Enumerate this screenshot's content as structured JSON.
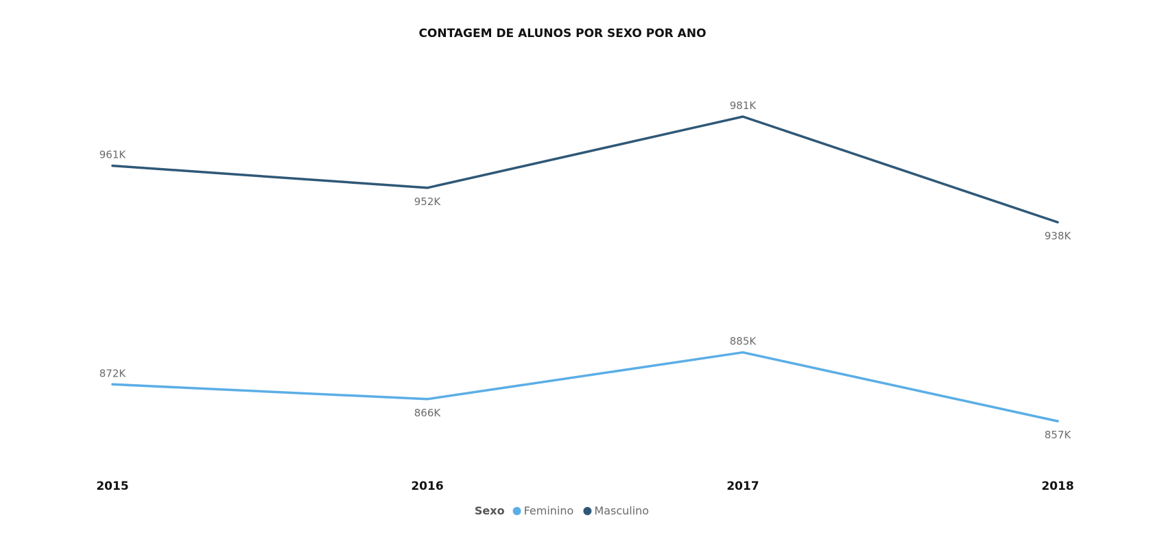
{
  "chart_data": {
    "type": "line",
    "title": "CONTAGEM DE ALUNOS POR SEXO POR ANO",
    "categories": [
      "2015",
      "2016",
      "2017",
      "2018"
    ],
    "series": [
      {
        "name": "Masculino",
        "values": [
          961,
          952,
          981,
          938
        ],
        "labels": [
          "961K",
          "952K",
          "981K",
          "938K"
        ],
        "color": "#2f5877"
      },
      {
        "name": "Feminino",
        "values": [
          872,
          866,
          885,
          857
        ],
        "labels": [
          "872K",
          "866K",
          "885K",
          "857K"
        ],
        "color": "#5baee6"
      }
    ],
    "legend": {
      "title": "Sexo",
      "position": "bottom-center",
      "entries": [
        "Feminino",
        "Masculino"
      ]
    },
    "units": "K",
    "grid": false
  }
}
